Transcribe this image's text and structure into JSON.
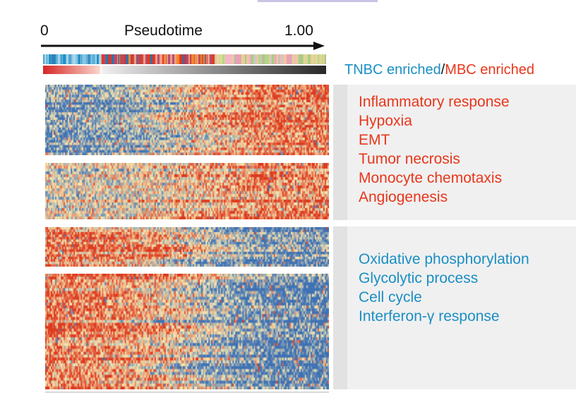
{
  "chart_data": {
    "type": "heatmap",
    "axis": {
      "label": "Pseudotime",
      "start_label": "0",
      "end_label": "1.00",
      "xlim": [
        0,
        1.0
      ]
    },
    "legend": {
      "left": "TNBC enriched",
      "separator": "/",
      "right": "MBC enriched"
    },
    "colors": {
      "tnbc": "#1a8fc4",
      "mbc": "#e8361b",
      "low": "#3f72b5",
      "mid": "#f7e7b0",
      "high": "#dd3b20",
      "panel": "#f0f0f0"
    },
    "groups": [
      {
        "name": "MBC enriched",
        "color": "#e8361b",
        "terms": [
          "Inflammatory response",
          "Hypoxia",
          "EMT",
          "Tumor necrosis",
          "Monocyte chemotaxis",
          "Angiogenesis"
        ],
        "blocks": [
          {
            "rows": 28,
            "trend": "increasing",
            "start_level": 0.15,
            "end_level": 0.85
          },
          {
            "rows": 20,
            "trend": "increasing",
            "start_level": 0.45,
            "end_level": 0.8
          }
        ]
      },
      {
        "name": "TNBC enriched",
        "color": "#1a8fc4",
        "terms": [
          "Oxidative phosphorylation",
          "Glycolytic process",
          "Cell cycle",
          "Interferon-γ response"
        ],
        "blocks": [
          {
            "rows": 16,
            "trend": "decreasing",
            "start_level": 0.85,
            "end_level": 0.1
          },
          {
            "rows": 40,
            "trend": "decreasing",
            "start_level": 0.82,
            "end_level": 0.05
          }
        ]
      }
    ]
  }
}
